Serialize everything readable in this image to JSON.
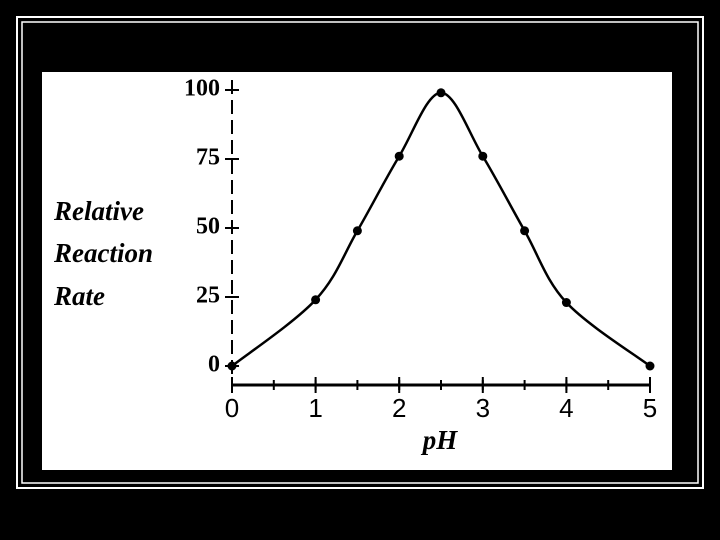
{
  "chart_data": {
    "type": "line",
    "xlabel": "pH",
    "ylabel": [
      "Relative",
      "Reaction",
      "Rate"
    ],
    "x": [
      0,
      1,
      1.5,
      2,
      2.5,
      3,
      3.5,
      4,
      5
    ],
    "values": [
      0,
      24,
      49,
      76,
      99,
      76,
      49,
      23,
      0
    ],
    "color": "#000000",
    "xlim": [
      0,
      5
    ],
    "xticks": [
      0,
      1,
      2,
      3,
      4,
      5
    ],
    "ylim": [
      0,
      100
    ],
    "yticks": [
      0,
      25,
      50,
      75,
      100
    ]
  }
}
